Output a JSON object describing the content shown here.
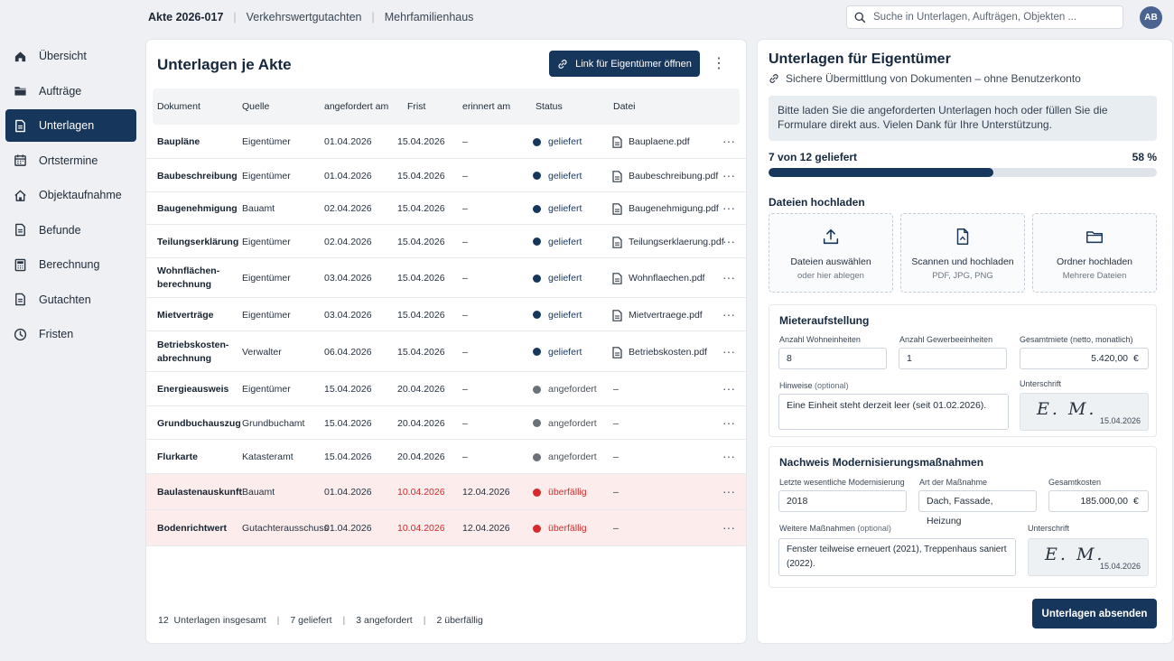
{
  "breadcrumb": [
    "Akte 2026-017",
    "Verkehrswertgutachten",
    "Mehrfamilienhaus"
  ],
  "search": {
    "placeholder": "Suche in Unterlagen, Aufträgen, Objekten ..."
  },
  "user": {
    "initials": "AB"
  },
  "sidebar": {
    "items": [
      {
        "label": "Übersicht",
        "icon": "home-icon"
      },
      {
        "label": "Aufträge",
        "icon": "folder-icon"
      },
      {
        "label": "Unterlagen",
        "icon": "document-icon",
        "active": true
      },
      {
        "label": "Ortstermine",
        "icon": "calendar-icon"
      },
      {
        "label": "Objektaufnahme",
        "icon": "house-icon"
      },
      {
        "label": "Befunde",
        "icon": "document-icon"
      },
      {
        "label": "Berechnung",
        "icon": "calculator-icon"
      },
      {
        "label": "Gutachten",
        "icon": "document-icon"
      },
      {
        "label": "Fristen",
        "icon": "clock-icon"
      }
    ]
  },
  "left": {
    "title": "Unterlagen je Akte",
    "link_button": "Link für Eigentümer öffnen",
    "columns": [
      "Dokument",
      "Quelle",
      "angefordert am",
      "Frist",
      "erinnert am",
      "Status",
      "Datei"
    ],
    "rows": [
      {
        "doc": "Baupläne",
        "source": "Eigentümer",
        "requested": "01.04.2026",
        "deadline": "15.04.2026",
        "reminded": "–",
        "status": "geliefert",
        "file": "Bauplaene.pdf"
      },
      {
        "doc": "Baubeschreibung",
        "source": "Eigentümer",
        "requested": "01.04.2026",
        "deadline": "15.04.2026",
        "reminded": "–",
        "status": "geliefert",
        "file": "Baubeschreibung.pdf"
      },
      {
        "doc": "Baugenehmigung",
        "source": "Bauamt",
        "requested": "02.04.2026",
        "deadline": "15.04.2026",
        "reminded": "–",
        "status": "geliefert",
        "file": "Baugenehmigung.pdf"
      },
      {
        "doc": "Teilungserklärung",
        "source": "Eigentümer",
        "requested": "02.04.2026",
        "deadline": "15.04.2026",
        "reminded": "–",
        "status": "geliefert",
        "file": "Teilungserklaerung.pdf"
      },
      {
        "doc": "Wohnflächen-\nberechnung",
        "source": "Eigentümer",
        "requested": "03.04.2026",
        "deadline": "15.04.2026",
        "reminded": "–",
        "status": "geliefert",
        "file": "Wohnflaechen.pdf"
      },
      {
        "doc": "Mietverträge",
        "source": "Eigentümer",
        "requested": "03.04.2026",
        "deadline": "15.04.2026",
        "reminded": "–",
        "status": "geliefert",
        "file": "Mietvertraege.pdf"
      },
      {
        "doc": "Betriebskosten-\nabrechnung",
        "source": "Verwalter",
        "requested": "06.04.2026",
        "deadline": "15.04.2026",
        "reminded": "–",
        "status": "geliefert",
        "file": "Betriebskosten.pdf"
      },
      {
        "doc": "Energieausweis",
        "source": "Eigentümer",
        "requested": "15.04.2026",
        "deadline": "20.04.2026",
        "reminded": "–",
        "status": "angefordert",
        "file": "–"
      },
      {
        "doc": "Grundbuchauszug",
        "source": "Grundbuchamt",
        "requested": "15.04.2026",
        "deadline": "20.04.2026",
        "reminded": "–",
        "status": "angefordert",
        "file": "–"
      },
      {
        "doc": "Flurkarte",
        "source": "Katasteramt",
        "requested": "15.04.2026",
        "deadline": "20.04.2026",
        "reminded": "–",
        "status": "angefordert",
        "file": "–"
      },
      {
        "doc": "Baulastenauskunft",
        "source": "Bauamt",
        "requested": "01.04.2026",
        "deadline": "10.04.2026",
        "reminded": "12.04.2026",
        "status": "überfällig",
        "file": "–"
      },
      {
        "doc": "Bodenrichtwert",
        "source": "Gutachterausschuss",
        "requested": "01.04.2026",
        "deadline": "10.04.2026",
        "reminded": "12.04.2026",
        "status": "überfällig",
        "file": "–"
      }
    ],
    "footer": {
      "total_count": "12",
      "total_label": "Unterlagen insgesamt",
      "delivered": "7 geliefert",
      "requested": "3 angefordert",
      "overdue": "2 überfällig"
    }
  },
  "right": {
    "title": "Unterlagen für Eigentümer",
    "subtitle": "Sichere Übermittlung von Dokumenten – ohne Benutzerkonto",
    "info": "Bitte laden Sie die angeforderten Unterlagen hoch oder füllen Sie die Formulare direkt aus. Vielen Dank für Ihre Unterstützung.",
    "progress": {
      "label": "7 von 12 geliefert",
      "percent_label": "58 %",
      "value": 0.58
    },
    "upload": {
      "title": "Dateien hochladen",
      "options": [
        {
          "label": "Dateien auswählen",
          "sub": "oder hier ablegen",
          "icon": "upload-icon"
        },
        {
          "label": "Scannen und hochladen",
          "sub": "PDF, JPG, PNG",
          "icon": "scan-document-icon"
        },
        {
          "label": "Ordner hochladen",
          "sub": "Mehrere Dateien",
          "icon": "folder-icon"
        }
      ]
    },
    "mieter": {
      "title": "Mieteraufstellung",
      "wohn_label": "Anzahl Wohneinheiten",
      "wohn_value": "8",
      "gewerbe_label": "Anzahl Gewerbeeinheiten",
      "gewerbe_value": "1",
      "miete_label": "Gesamtmiete (netto, monatlich)",
      "miete_value": "5.420,00",
      "currency": "€",
      "hinweise_label": "Hinweise",
      "optional": "(optional)",
      "hinweise_value": "Eine Einheit steht derzeit leer (seit 01.02.2026).",
      "sig_label": "Unterschrift",
      "sig_text": "E. M.",
      "sig_date": "15.04.2026"
    },
    "modern": {
      "title": "Nachweis Modernisierungsmaßnahmen",
      "year_label": "Letzte wesentliche Modernisierung",
      "year_value": "2018",
      "art_label": "Art der Maßnahme",
      "art_value": "Dach, Fassade, Heizung",
      "cost_label": "Gesamtkosten",
      "cost_value": "185.000,00",
      "currency": "€",
      "more_label": "Weitere Maßnahmen",
      "optional": "(optional)",
      "more_value": "Fenster teilweise erneuert (2021), Treppenhaus saniert (2022).",
      "sig_label": "Unterschrift",
      "sig_text": "E. M.",
      "sig_date": "15.04.2026"
    },
    "send_button": "Unterlagen absenden"
  },
  "colors": {
    "primary": "#17365c",
    "delivered": "#17365c",
    "requested": "#6b7178",
    "overdue": "#d42a2a",
    "overdue_row": "#fdecec"
  }
}
